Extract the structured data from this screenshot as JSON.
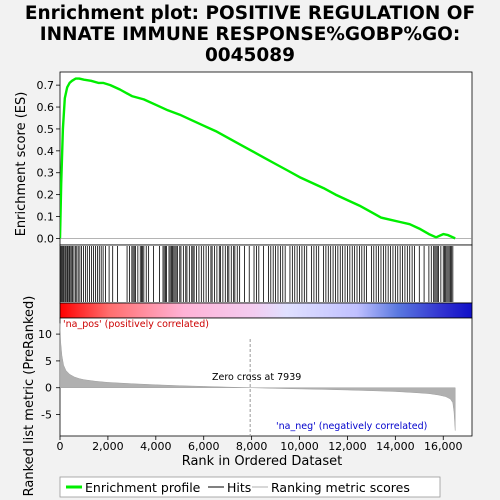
{
  "title_lines": [
    "Enrichment plot: POSITIVE REGULATION OF",
    "INNATE IMMUNE RESPONSE%GOBP%GO:",
    "0045089"
  ],
  "top_panel": {
    "ylabel": "Enrichment score (ES)",
    "yticks": [
      "0.0",
      "0.1",
      "0.2",
      "0.3",
      "0.4",
      "0.5",
      "0.6",
      "0.7"
    ]
  },
  "bottom_panel": {
    "ylabel": "Ranked list metric (PreRanked)",
    "xlabel": "Rank in Ordered Dataset",
    "yticks": [
      "-5",
      "0",
      "5",
      "10"
    ],
    "xticks": [
      "0",
      "2,000",
      "4,000",
      "6,000",
      "8,000",
      "10,000",
      "12,000",
      "14,000",
      "16,000"
    ],
    "pos_label": "'na_pos' (positively correlated)",
    "neg_label": "'na_neg' (negatively correlated)",
    "zero_cross_label": "Zero cross at 7939"
  },
  "legend": {
    "es": "Enrichment profile",
    "hits": "Hits",
    "metric": "Ranking metric scores"
  },
  "colors": {
    "es_line": "#00ee00",
    "hits": "#000000",
    "metric": "#b0b0b0",
    "pos_text": "#cc0000",
    "neg_text": "#0000cc",
    "background": "#f2f2f2",
    "plot_bg": "#ffffff"
  },
  "chart_data": {
    "type": "line",
    "n_genes": 16500,
    "zero_cross": 7939,
    "es_xlim": [
      0,
      17200
    ],
    "es_ylim": [
      -0.03,
      0.76
    ],
    "metric_ylim": [
      -9,
      13
    ],
    "es_profile": {
      "x": [
        0,
        50,
        120,
        200,
        300,
        400,
        500,
        650,
        800,
        1000,
        1300,
        1600,
        1800,
        2100,
        2500,
        3000,
        3500,
        4000,
        4500,
        5000,
        5500,
        6000,
        6500,
        7000,
        7500,
        8000,
        8500,
        9000,
        9500,
        10000,
        10500,
        11000,
        11500,
        12000,
        12500,
        13000,
        13400,
        13800,
        14200,
        14600,
        15000,
        15400,
        15700,
        16000,
        16200,
        16500
      ],
      "y": [
        0.0,
        0.25,
        0.5,
        0.64,
        0.69,
        0.71,
        0.72,
        0.73,
        0.73,
        0.725,
        0.72,
        0.71,
        0.71,
        0.7,
        0.68,
        0.65,
        0.635,
        0.61,
        0.585,
        0.565,
        0.54,
        0.515,
        0.49,
        0.46,
        0.43,
        0.4,
        0.37,
        0.34,
        0.31,
        0.28,
        0.255,
        0.23,
        0.2,
        0.175,
        0.15,
        0.12,
        0.095,
        0.085,
        0.075,
        0.065,
        0.045,
        0.02,
        0.005,
        0.02,
        0.015,
        0.0
      ]
    },
    "hits": [
      20,
      60,
      110,
      150,
      200,
      240,
      290,
      330,
      380,
      420,
      470,
      520,
      580,
      640,
      700,
      760,
      830,
      900,
      980,
      1060,
      1140,
      1230,
      1320,
      1400,
      1480,
      1560,
      1640,
      1720,
      1800,
      1900,
      2050,
      2200,
      2400,
      2800,
      2900,
      3000,
      3050,
      3100,
      3150,
      3250,
      3350,
      3400,
      3450,
      3500,
      3600,
      3700,
      3900,
      4150,
      4300,
      4350,
      4400,
      4450,
      4550,
      4600,
      4650,
      4700,
      4750,
      4800,
      4850,
      4900,
      5000,
      5050,
      5150,
      5250,
      5300,
      5400,
      5500,
      5550,
      5600,
      5700,
      5800,
      5900,
      6000,
      6100,
      6200,
      6300,
      6350,
      6450,
      6550,
      6650,
      6700,
      6800,
      6900,
      7000,
      7050,
      7150,
      7250,
      7300,
      7400,
      7500,
      7700,
      7900,
      8100,
      8200,
      8300,
      8500,
      8700,
      8800,
      8900,
      9000,
      9100,
      9200,
      9300,
      9400,
      9600,
      9700,
      9800,
      9900,
      10000,
      10100,
      10200,
      10300,
      10500,
      10600,
      10700,
      10800,
      11000,
      11100,
      11200,
      11300,
      11400,
      11500,
      11600,
      11700,
      11800,
      11900,
      12000,
      12100,
      12200,
      12300,
      12400,
      12500,
      12600,
      12700,
      12800,
      13000,
      13100,
      13200,
      13300,
      13400,
      13500,
      13600,
      13700,
      13800,
      13900,
      14000,
      14100,
      14200,
      14300,
      14400,
      14500,
      14600,
      14700,
      14800,
      15000,
      15200,
      15400,
      15500,
      15600,
      15650,
      15700,
      15750,
      15800,
      15900,
      16000,
      16050,
      16100,
      16150,
      16200,
      16250,
      16300,
      16350,
      16400
    ],
    "metric_profile": {
      "x": [
        0,
        30,
        80,
        150,
        250,
        400,
        600,
        800,
        1000,
        1500,
        2000,
        3000,
        4000,
        5000,
        6000,
        7000,
        7939,
        9000,
        10000,
        11000,
        12000,
        13000,
        14000,
        14800,
        15400,
        15800,
        16100,
        16300,
        16400,
        16450,
        16500
      ],
      "y": [
        12,
        8.5,
        6,
        4.2,
        3.2,
        2.5,
        2.0,
        1.7,
        1.5,
        1.2,
        1.0,
        0.75,
        0.55,
        0.38,
        0.25,
        0.12,
        0.0,
        -0.12,
        -0.22,
        -0.32,
        -0.42,
        -0.55,
        -0.7,
        -0.9,
        -1.1,
        -1.35,
        -1.65,
        -2.1,
        -2.8,
        -4.5,
        -8.0
      ]
    },
    "xticks": [
      0,
      2000,
      4000,
      6000,
      8000,
      10000,
      12000,
      14000,
      16000
    ],
    "es_yticks": [
      0.0,
      0.1,
      0.2,
      0.3,
      0.4,
      0.5,
      0.6,
      0.7
    ],
    "metric_yticks": [
      -5,
      0,
      5,
      10
    ],
    "grid": false
  }
}
